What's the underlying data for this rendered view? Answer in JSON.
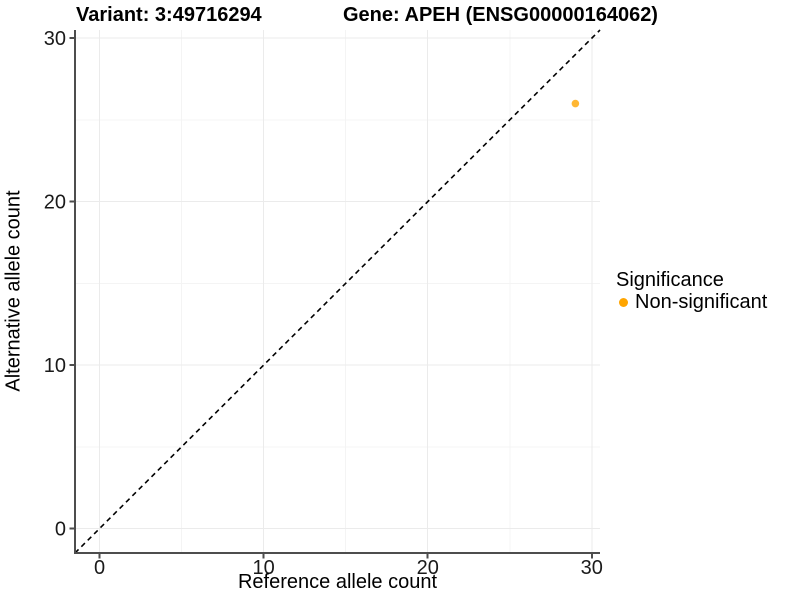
{
  "figure": {
    "title_left": "Variant: 3:49716294",
    "title_right": "Gene: APEH (ENSG00000164062)"
  },
  "axes": {
    "x_title": "Reference allele count",
    "y_title": "Alternative allele count"
  },
  "legend": {
    "title": "Significance",
    "items": [
      {
        "label": "Non-significant",
        "color": "#FFA500"
      }
    ]
  },
  "chart_data": {
    "type": "scatter",
    "title": "Variant: 3:49716294 / Gene: APEH (ENSG00000164062)",
    "xlabel": "Reference allele count",
    "ylabel": "Alternative allele count",
    "xlim": [
      -1.5,
      30.5
    ],
    "ylim": [
      -1.5,
      30.5
    ],
    "x_ticks": [
      0,
      10,
      20,
      30
    ],
    "y_ticks": [
      0,
      10,
      20,
      30
    ],
    "x_minor_ticks": [
      5,
      15,
      25
    ],
    "y_minor_ticks": [
      5,
      15,
      25
    ],
    "grid": "major+minor",
    "legend_position": "right",
    "series": [
      {
        "name": "Non-significant",
        "color": "#FFA500",
        "point_opacity": 0.8,
        "point_radius": 3.8,
        "points": [
          {
            "x": 29,
            "y": 26
          }
        ]
      }
    ],
    "reference_line": {
      "type": "identity y=x",
      "style": "dashed",
      "color": "#000000"
    },
    "style": {
      "background": "#ffffff",
      "axis_line_color": "#4d4d4d",
      "tick_color": "#4d4d4d",
      "tick_label_color": "#1a1a1a",
      "grid_major_color": "#ebebeb",
      "grid_minor_color": "#f4f4f4"
    }
  }
}
